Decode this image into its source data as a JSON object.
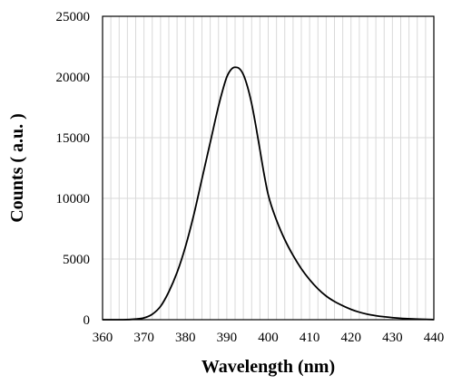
{
  "chart_data": {
    "type": "line",
    "title": "",
    "xlabel": "Wavelength (nm)",
    "ylabel": "Counts ( a.u. )",
    "xlim": [
      360,
      440
    ],
    "ylim": [
      0,
      25000
    ],
    "xticks": [
      360,
      370,
      380,
      390,
      400,
      410,
      420,
      430,
      440
    ],
    "yticks": [
      0,
      5000,
      10000,
      15000,
      20000,
      25000
    ],
    "xtick_labels": [
      "360",
      "370",
      "380",
      "390",
      "400",
      "410",
      "420",
      "430",
      "440"
    ],
    "ytick_labels": [
      "0",
      "5000",
      "10000",
      "15000",
      "20000",
      "25000"
    ],
    "grid": true,
    "legend": "none",
    "series": [
      {
        "color": "#000000",
        "x": [
          360,
          365,
          368,
          370,
          372,
          374,
          376,
          378,
          380,
          382,
          384,
          386,
          388,
          389,
          390,
          391,
          392,
          393,
          394,
          395,
          396,
          397,
          398,
          399,
          400,
          402,
          404,
          406,
          408,
          410,
          412,
          414,
          416,
          418,
          420,
          422,
          424,
          426,
          428,
          430,
          435,
          440
        ],
        "y": [
          0,
          0,
          50,
          150,
          450,
          1100,
          2300,
          3900,
          6000,
          8600,
          11600,
          14600,
          17600,
          18900,
          20000,
          20600,
          20800,
          20700,
          20200,
          19200,
          17800,
          16000,
          14000,
          12000,
          10300,
          8200,
          6600,
          5300,
          4200,
          3300,
          2550,
          1950,
          1500,
          1150,
          850,
          620,
          450,
          330,
          240,
          170,
          60,
          10
        ]
      }
    ]
  }
}
